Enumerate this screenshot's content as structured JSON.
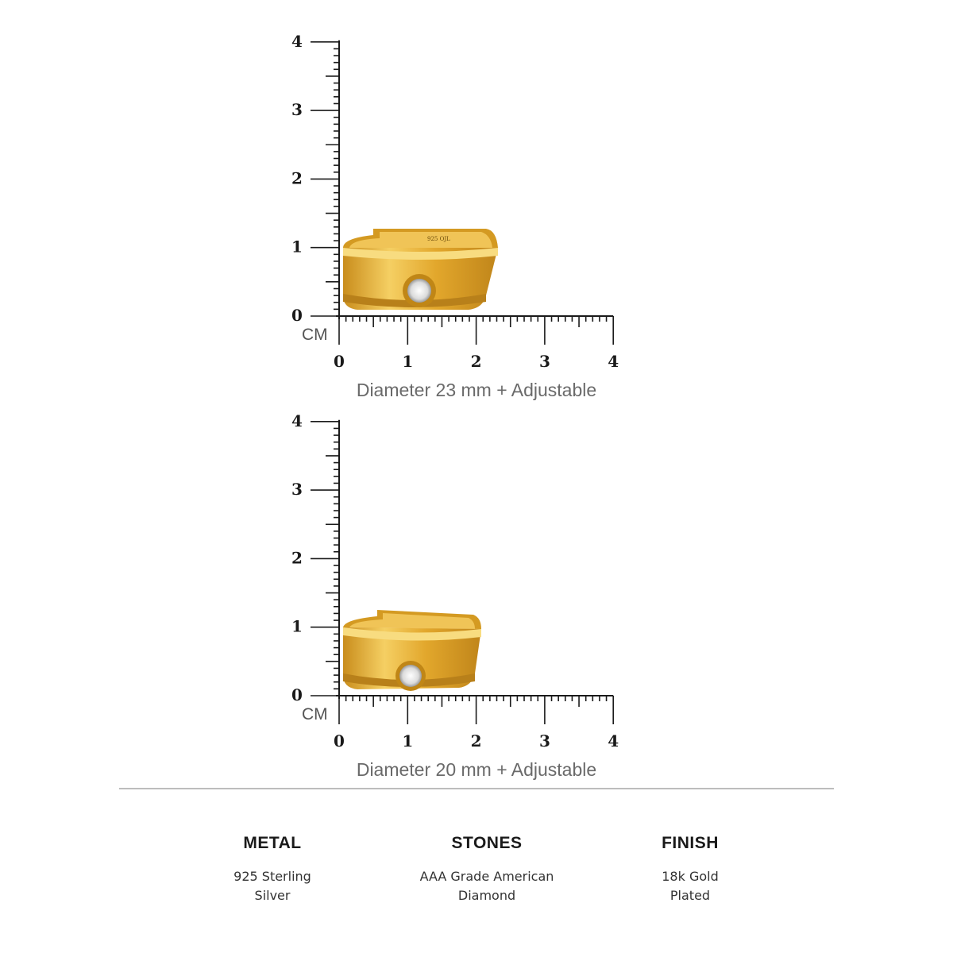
{
  "rulers": [
    {
      "unit": "CM",
      "y_ticks": [
        "0",
        "1",
        "2",
        "3",
        "4"
      ],
      "x_ticks": [
        "0",
        "1",
        "2",
        "3",
        "4"
      ],
      "caption": "Diameter 23 mm + Adjustable",
      "ring": {
        "diameter_mm": 23,
        "engraving": "925 OJL",
        "colors": {
          "gold": "#e0a82a",
          "stone": "#f2f2f2"
        }
      }
    },
    {
      "unit": "CM",
      "y_ticks": [
        "0",
        "1",
        "2",
        "3",
        "4"
      ],
      "x_ticks": [
        "0",
        "1",
        "2",
        "3",
        "4"
      ],
      "caption": "Diameter 20 mm + Adjustable",
      "ring": {
        "diameter_mm": 20,
        "colors": {
          "gold": "#e0a82a",
          "stone": "#f2f2f2"
        }
      }
    }
  ],
  "specs": [
    {
      "title": "METAL",
      "value": "925 Sterling\nSilver"
    },
    {
      "title": "STONES",
      "value": "AAA Grade American\nDiamond"
    },
    {
      "title": "FINISH",
      "value": "18k Gold\nPlated"
    }
  ]
}
